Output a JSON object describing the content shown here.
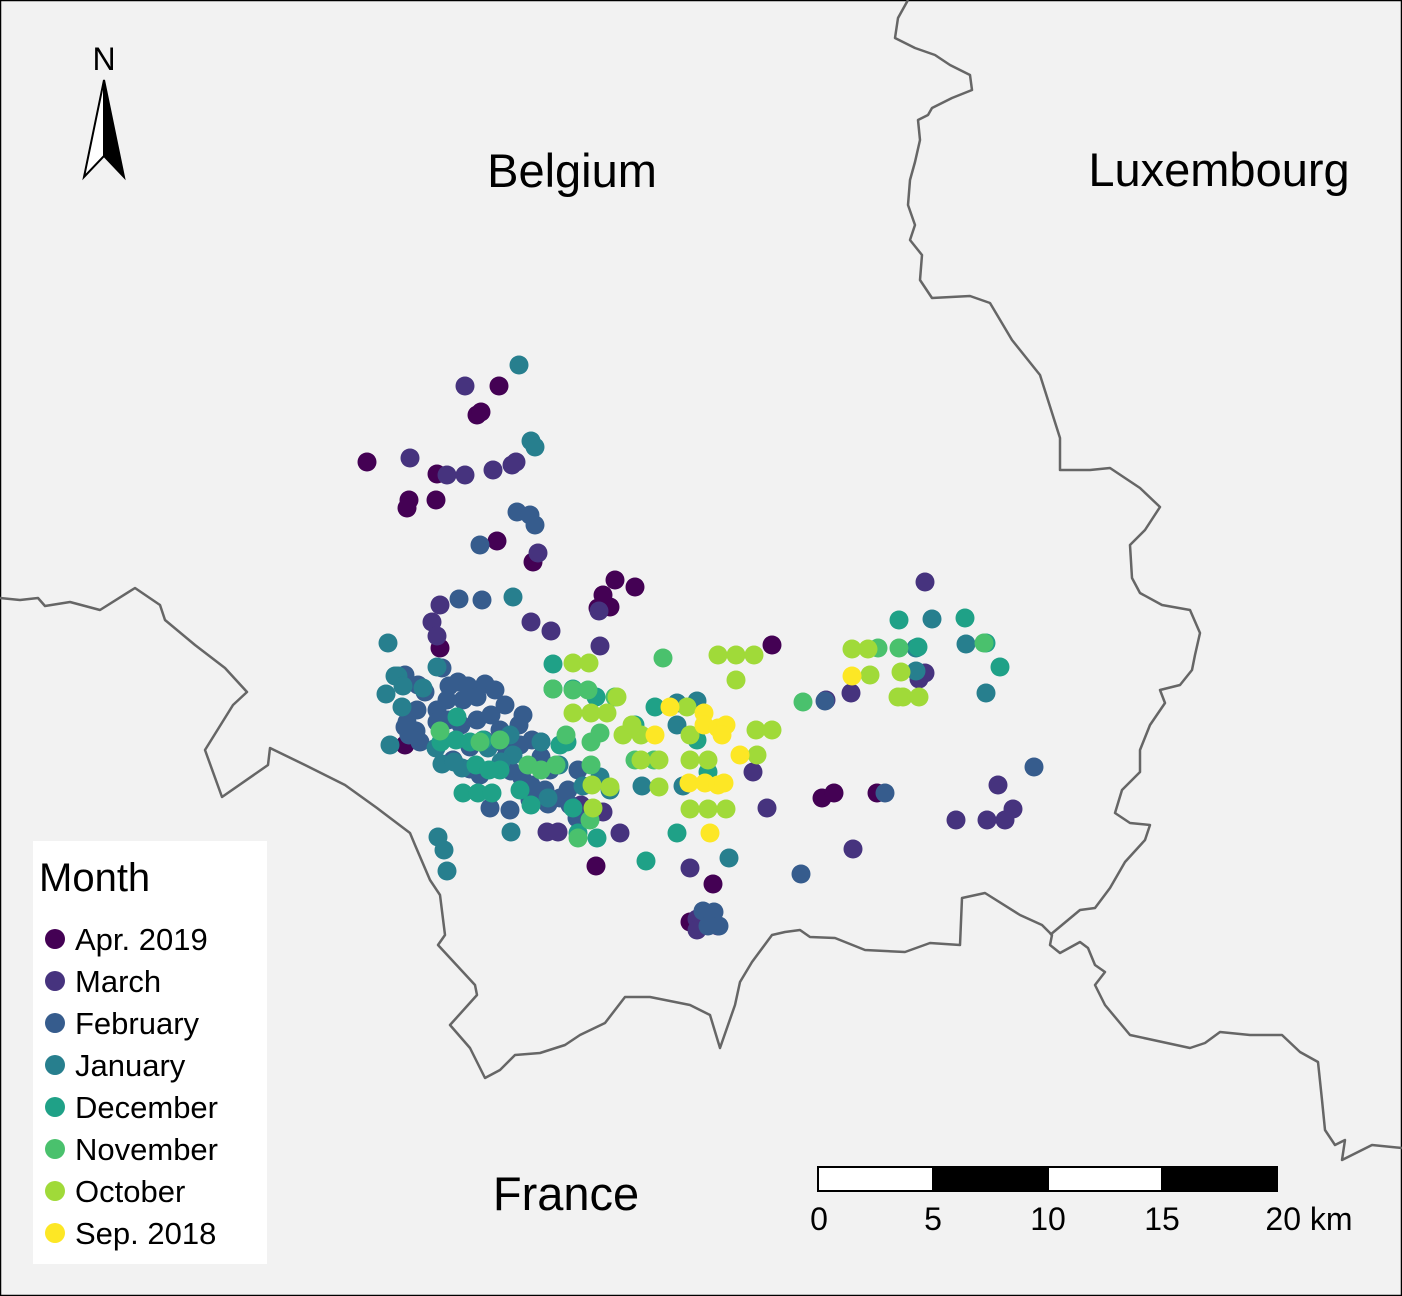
{
  "labels": {
    "belgium": "Belgium",
    "luxembourg": "Luxembourg",
    "france": "France",
    "north": "N"
  },
  "legend": {
    "title": "Month",
    "items": [
      {
        "label": "Apr. 2019",
        "color": "#440154"
      },
      {
        "label": "March",
        "color": "#46337e"
      },
      {
        "label": "February",
        "color": "#365c8d"
      },
      {
        "label": "January",
        "color": "#277f8e"
      },
      {
        "label": "December",
        "color": "#1fa187"
      },
      {
        "label": "November",
        "color": "#4ac16d"
      },
      {
        "label": "October",
        "color": "#a0da39"
      },
      {
        "label": "Sep. 2018",
        "color": "#fde725"
      }
    ]
  },
  "scale_bar": {
    "ticks": [
      "0",
      "5",
      "10",
      "15",
      "20 km"
    ]
  },
  "colors": {
    "land": "#f2f2f2",
    "border": "#666666"
  }
}
